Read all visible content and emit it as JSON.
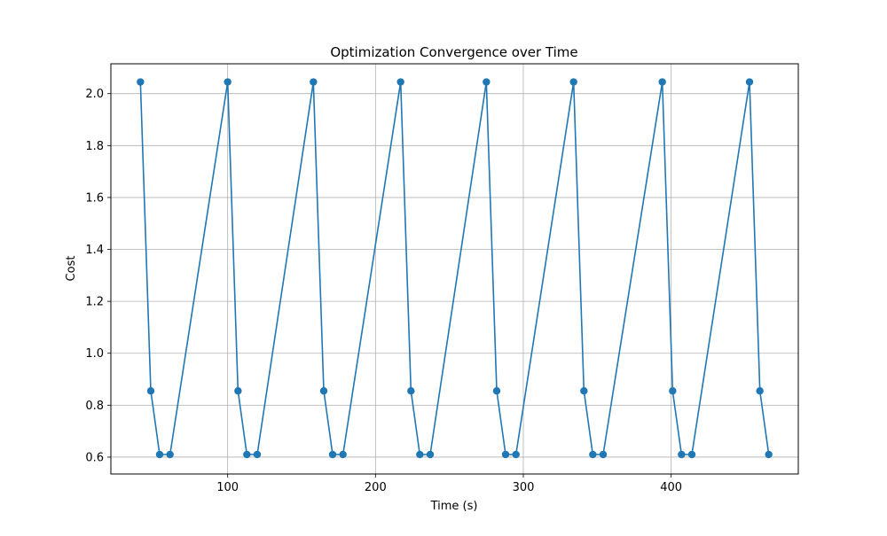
{
  "chart_data": {
    "type": "line",
    "title": "Optimization Convergence over Time",
    "xlabel": "Time (s)",
    "ylabel": "Cost",
    "xlim": [
      21,
      486
    ],
    "ylim": [
      0.535,
      2.115
    ],
    "xticks": [
      100,
      200,
      300,
      400
    ],
    "yticks": [
      0.6,
      0.8,
      1.0,
      1.2,
      1.4,
      1.6,
      1.8,
      2.0
    ],
    "ytick_labels": [
      "0.6",
      "0.8",
      "1.0",
      "1.2",
      "1.4",
      "1.6",
      "1.8",
      "2.0"
    ],
    "grid": true,
    "marker": "circle",
    "color": "#1f77b4",
    "series": [
      {
        "x": [
          41,
          48,
          54,
          61,
          100,
          107,
          113,
          120,
          158,
          165,
          171,
          178,
          217,
          224,
          230,
          237,
          275,
          282,
          288,
          295,
          334,
          341,
          347,
          354,
          394,
          401,
          407,
          414,
          453,
          460,
          466
        ],
        "y": [
          2.045,
          0.855,
          0.61,
          0.61,
          2.045,
          0.855,
          0.61,
          0.61,
          2.045,
          0.855,
          0.61,
          0.61,
          2.045,
          0.855,
          0.61,
          0.61,
          2.045,
          0.855,
          0.61,
          0.61,
          2.045,
          0.855,
          0.61,
          0.61,
          2.045,
          0.855,
          0.61,
          0.61,
          2.045,
          0.855,
          0.61
        ]
      }
    ]
  }
}
